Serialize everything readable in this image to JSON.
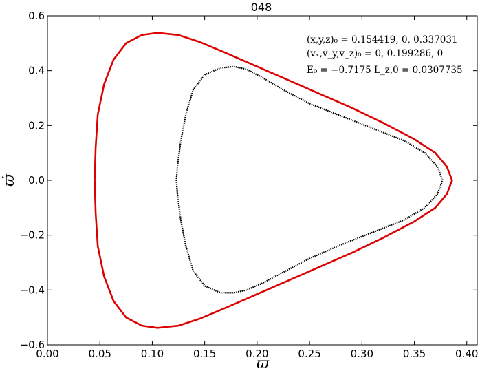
{
  "chart_data": {
    "type": "line",
    "title": "048",
    "xlabel": "ϖ",
    "ylabel": "ϖ̇",
    "xlim": [
      0.0,
      0.41
    ],
    "ylim": [
      -0.6,
      0.6
    ],
    "grid": false,
    "xticks": [
      "0.00",
      "0.05",
      "0.10",
      "0.15",
      "0.20",
      "0.25",
      "0.30",
      "0.35",
      "0.40"
    ],
    "xtick_values": [
      0.0,
      0.05,
      0.1,
      0.15,
      0.2,
      0.25,
      0.3,
      0.35,
      0.4
    ],
    "yticks": [
      "−0.6",
      "−0.4",
      "−0.2",
      "0.0",
      "0.2",
      "0.4",
      "0.6"
    ],
    "ytick_values": [
      -0.6,
      -0.4,
      -0.2,
      0.0,
      0.2,
      0.4,
      0.6
    ],
    "annotations": [
      "(x,y,z)₀ = 0.154419, 0, 0.337031",
      "(vₓ,v_y,v_z)₀ = 0, 0.199286, 0",
      "E₀ = −0.7175  L_z,0 = 0.0307735"
    ],
    "series": [
      {
        "color": "#dd0000",
        "style": "solid",
        "points": [
          [
            0.386,
            0.0
          ],
          [
            0.381,
            0.05
          ],
          [
            0.37,
            0.1
          ],
          [
            0.35,
            0.15
          ],
          [
            0.32,
            0.21
          ],
          [
            0.29,
            0.265
          ],
          [
            0.26,
            0.315
          ],
          [
            0.23,
            0.365
          ],
          [
            0.2,
            0.415
          ],
          [
            0.17,
            0.465
          ],
          [
            0.145,
            0.505
          ],
          [
            0.125,
            0.53
          ],
          [
            0.105,
            0.538
          ],
          [
            0.09,
            0.53
          ],
          [
            0.075,
            0.5
          ],
          [
            0.063,
            0.44
          ],
          [
            0.054,
            0.35
          ],
          [
            0.048,
            0.24
          ],
          [
            0.046,
            0.12
          ],
          [
            0.045,
            0.0
          ],
          [
            0.046,
            -0.12
          ],
          [
            0.048,
            -0.24
          ],
          [
            0.054,
            -0.35
          ],
          [
            0.063,
            -0.44
          ],
          [
            0.075,
            -0.5
          ],
          [
            0.09,
            -0.53
          ],
          [
            0.105,
            -0.538
          ],
          [
            0.125,
            -0.53
          ],
          [
            0.145,
            -0.505
          ],
          [
            0.17,
            -0.465
          ],
          [
            0.2,
            -0.415
          ],
          [
            0.23,
            -0.365
          ],
          [
            0.26,
            -0.315
          ],
          [
            0.29,
            -0.265
          ],
          [
            0.32,
            -0.21
          ],
          [
            0.35,
            -0.15
          ],
          [
            0.37,
            -0.1
          ],
          [
            0.381,
            -0.05
          ],
          [
            0.386,
            0.0
          ]
        ]
      },
      {
        "color": "#000000",
        "style": "dotted",
        "points": [
          [
            0.377,
            0.0
          ],
          [
            0.372,
            0.05
          ],
          [
            0.36,
            0.1
          ],
          [
            0.34,
            0.145
          ],
          [
            0.31,
            0.19
          ],
          [
            0.28,
            0.235
          ],
          [
            0.25,
            0.28
          ],
          [
            0.225,
            0.33
          ],
          [
            0.205,
            0.375
          ],
          [
            0.19,
            0.405
          ],
          [
            0.178,
            0.415
          ],
          [
            0.165,
            0.41
          ],
          [
            0.15,
            0.385
          ],
          [
            0.139,
            0.33
          ],
          [
            0.132,
            0.24
          ],
          [
            0.127,
            0.14
          ],
          [
            0.124,
            0.05
          ],
          [
            0.123,
            0.0
          ],
          [
            0.124,
            -0.05
          ],
          [
            0.127,
            -0.14
          ],
          [
            0.132,
            -0.24
          ],
          [
            0.139,
            -0.33
          ],
          [
            0.15,
            -0.385
          ],
          [
            0.165,
            -0.41
          ],
          [
            0.178,
            -0.41
          ],
          [
            0.19,
            -0.4
          ],
          [
            0.205,
            -0.375
          ],
          [
            0.225,
            -0.335
          ],
          [
            0.25,
            -0.285
          ],
          [
            0.28,
            -0.235
          ],
          [
            0.31,
            -0.19
          ],
          [
            0.34,
            -0.145
          ],
          [
            0.36,
            -0.1
          ],
          [
            0.372,
            -0.05
          ],
          [
            0.377,
            0.0
          ]
        ]
      }
    ]
  }
}
